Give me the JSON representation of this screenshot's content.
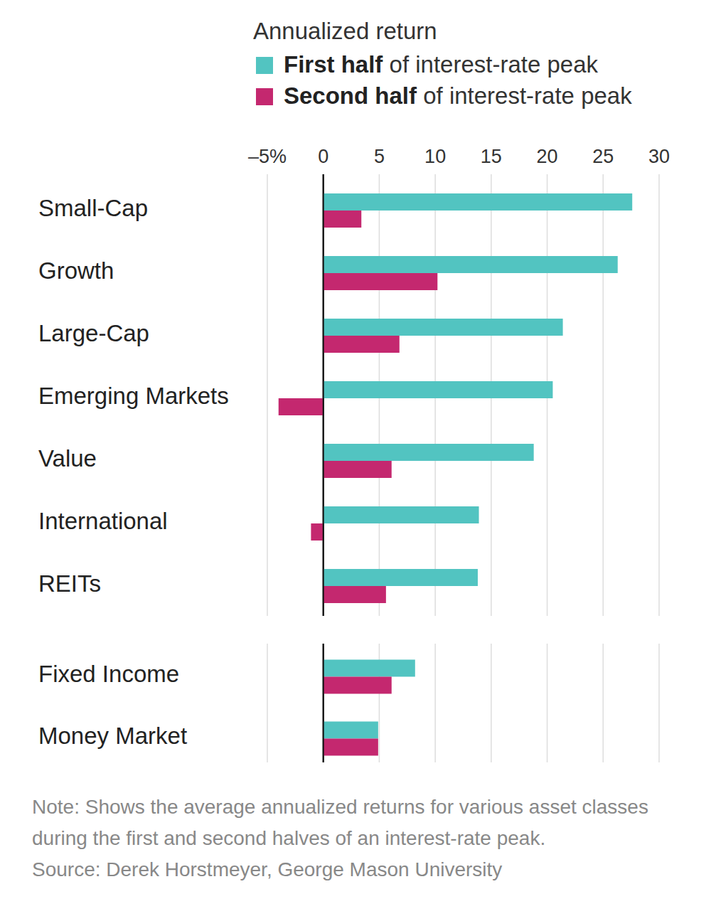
{
  "chart_data": [
    {
      "type": "bar",
      "orientation": "horizontal",
      "title": "Annualized return",
      "categories": [
        "Small-Cap",
        "Growth",
        "Large-Cap",
        "Emerging Markets",
        "Value",
        "International",
        "REITs"
      ],
      "series": [
        {
          "name": "First half of interest-rate peak",
          "color": "#52c4c1",
          "values": [
            27.6,
            26.3,
            21.4,
            20.5,
            18.8,
            13.9,
            13.8
          ]
        },
        {
          "name": "Second half of interest-rate peak",
          "color": "#c4286f",
          "values": [
            3.4,
            10.2,
            6.8,
            -4.0,
            6.1,
            -1.1,
            5.6
          ]
        }
      ],
      "xlim": [
        -5,
        30
      ],
      "xticks": [
        {
          "value": -5,
          "label": "–5%"
        },
        0,
        5,
        10,
        15,
        20,
        25,
        30
      ],
      "grid": true,
      "legend": "top-right",
      "annotations": [
        "Note: Shows the average annualized returns for various asset classes during the first and second halves of an interest-rate peak.",
        "Source: Derek Horstmeyer, George Mason University"
      ]
    },
    {
      "type": "bar",
      "orientation": "horizontal",
      "categories": [
        "Fixed Income",
        "Money Market"
      ],
      "series": [
        {
          "color": "#52c4c1",
          "values": [
            8.2,
            4.9
          ]
        },
        {
          "color": "#c4286f",
          "values": [
            6.1,
            4.9
          ]
        }
      ],
      "xlim": [
        -5,
        30
      ],
      "xticks": [
        -5,
        0,
        5,
        10,
        15,
        20,
        25,
        30
      ],
      "grid": true,
      "tick_labels": false
    }
  ]
}
